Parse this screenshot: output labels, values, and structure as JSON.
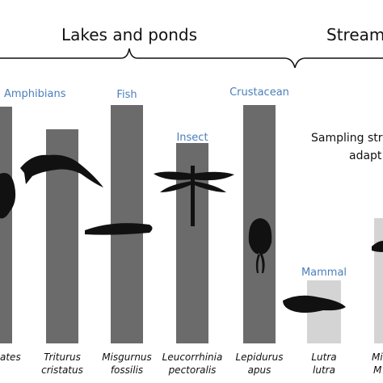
{
  "header": {
    "habitats": [
      "Lakes and ponds",
      "Stream"
    ]
  },
  "groups": [
    "Amphibians",
    "Fish",
    "Insect",
    "Crustacean",
    "Mammal"
  ],
  "species": [
    [
      "ates"
    ],
    [
      "Triturus",
      "cristatus"
    ],
    [
      "Misgurnus",
      "fossilis"
    ],
    [
      "Leucorrhinia",
      "pectoralis"
    ],
    [
      "Lepidurus",
      "apus"
    ],
    [
      "Lutra",
      "lutra"
    ],
    [
      "Mi",
      "M"
    ]
  ],
  "note": [
    "Sampling stra",
    "adapt"
  ]
}
